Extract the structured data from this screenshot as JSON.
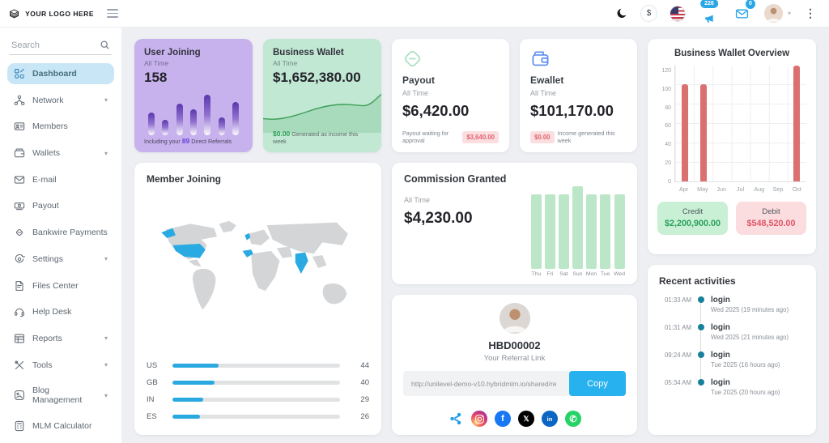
{
  "header": {
    "logo_text": "YOUR LOGO HERE",
    "currency_symbol": "$",
    "notification_count": "226",
    "mail_count": "0"
  },
  "sidebar": {
    "search_placeholder": "Search",
    "items": [
      {
        "label": "Dashboard",
        "icon": "dashboard",
        "active": true,
        "chevron": false
      },
      {
        "label": "Network",
        "icon": "network",
        "chevron": true
      },
      {
        "label": "Members",
        "icon": "members",
        "chevron": false
      },
      {
        "label": "Wallets",
        "icon": "wallets",
        "chevron": true
      },
      {
        "label": "E-mail",
        "icon": "email",
        "chevron": false
      },
      {
        "label": "Payout",
        "icon": "payout",
        "chevron": false
      },
      {
        "label": "Bankwire Payments",
        "icon": "bankwire",
        "chevron": false
      },
      {
        "label": "Settings",
        "icon": "settings",
        "chevron": true
      },
      {
        "label": "Files Center",
        "icon": "files",
        "chevron": false
      },
      {
        "label": "Help Desk",
        "icon": "helpdesk",
        "chevron": false
      },
      {
        "label": "Reports",
        "icon": "reports",
        "chevron": true
      },
      {
        "label": "Tools",
        "icon": "tools",
        "chevron": true
      },
      {
        "label": "Blog Management",
        "icon": "blog",
        "chevron": true
      },
      {
        "label": "MLM Calculator",
        "icon": "calculator",
        "chevron": false
      }
    ]
  },
  "user_joining": {
    "title": "User Joining",
    "subtitle": "All Time",
    "value": "158",
    "footer_prefix": "Including your ",
    "footer_count": "89",
    "footer_suffix": " Direct Referrals"
  },
  "business_wallet": {
    "title": "Business Wallet",
    "subtitle": "All Time",
    "value": "$1,652,380.00",
    "footer_amount": "$0.00",
    "footer_text": " Generated as income this week"
  },
  "payout_card": {
    "title": "Payout",
    "subtitle": "All Time",
    "value": "$6,420.00",
    "footer_text": "Payout waiting for approval",
    "footer_badge": "$3,640.00"
  },
  "ewallet_card": {
    "title": "Ewallet",
    "subtitle": "All Time",
    "value": "$101,170.00",
    "footer_badge": "$0.00",
    "footer_text": "Income generated this week"
  },
  "member_joining": {
    "title": "Member Joining"
  },
  "commission": {
    "title": "Commission Granted",
    "subtitle": "All Time",
    "value": "$4,230.00"
  },
  "referral": {
    "user_id": "HBD00002",
    "label": "Your Referral Link",
    "link": "http://unilevel-demo-v10.hybridmlm.io/shared/re",
    "copy_label": "Copy",
    "socials": [
      "share",
      "instagram",
      "facebook",
      "x",
      "linkedin",
      "whatsapp"
    ]
  },
  "wallet_overview": {
    "title": "Business Wallet Overview",
    "credit_label": "Credit",
    "credit_value": "$2,200,900.00",
    "debit_label": "Debit",
    "debit_value": "$548,520.00"
  },
  "recent_activities": {
    "title": "Recent activities",
    "items": [
      {
        "time": "01:33 AM",
        "action": "login",
        "detail": "Wed 2025 (19 minutes ago)"
      },
      {
        "time": "01:31 AM",
        "action": "login",
        "detail": "Wed 2025 (21 minutes ago)"
      },
      {
        "time": "09:24 AM",
        "action": "login",
        "detail": "Tue 2025 (16 hours ago)"
      },
      {
        "time": "05:34 AM",
        "action": "login",
        "detail": "Tue 2025 (20 hours ago)"
      }
    ]
  },
  "chart_data": [
    {
      "id": "user_joining_bars",
      "type": "bar",
      "title": "User Joining spark bars",
      "values": [
        50,
        34,
        70,
        58,
        90,
        40,
        74
      ],
      "note": "relative heights, no axes shown"
    },
    {
      "id": "business_wallet_spark",
      "type": "area",
      "title": "Business Wallet sparkline",
      "values": [
        12,
        11,
        14,
        19,
        25,
        29,
        31,
        30,
        28,
        44
      ],
      "note": "relative heights left to right, no axes shown"
    },
    {
      "id": "wallet_overview",
      "type": "bar",
      "title": "Business Wallet Overview",
      "categories": [
        "Apr",
        "May",
        "Jun",
        "Jul",
        "Aug",
        "Sep",
        "Oct"
      ],
      "values": [
        100,
        100,
        0,
        0,
        0,
        0,
        119
      ],
      "ylim": [
        0,
        120
      ],
      "yticks": [
        120,
        100,
        80,
        60,
        40,
        20,
        0
      ],
      "bar_color": "#db7070",
      "grid": true
    },
    {
      "id": "commission_week",
      "type": "bar",
      "title": "Commission Granted weekly",
      "categories": [
        "Thu",
        "Fri",
        "Sat",
        "Sun",
        "Mon",
        "Tue",
        "Wed"
      ],
      "values": [
        92,
        92,
        92,
        102,
        92,
        92,
        92
      ],
      "bar_color": "#bbe7c8",
      "note": "relative heights, no axes shown"
    },
    {
      "id": "member_countries",
      "type": "bar",
      "title": "Member Joining by country",
      "categories": [
        "US",
        "GB",
        "IN",
        "ES"
      ],
      "values": [
        44,
        40,
        29,
        26
      ],
      "scale_max": 160,
      "bar_color": "#2aa9e0"
    }
  ]
}
